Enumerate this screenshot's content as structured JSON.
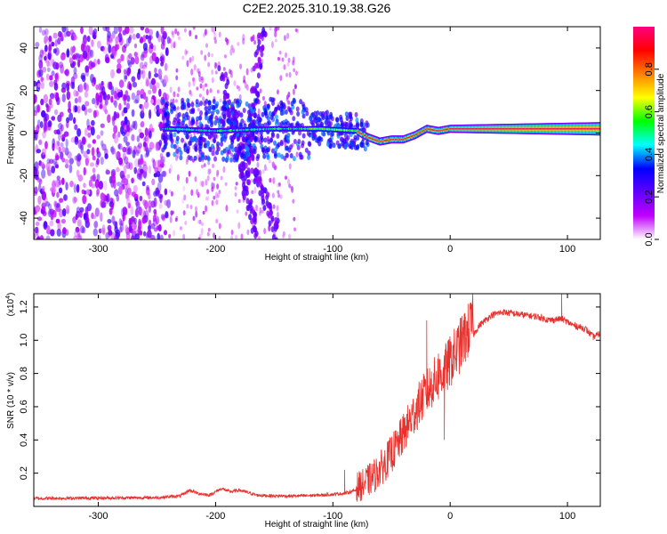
{
  "title": "C2E2.2025.310.19.38.G26",
  "chart_data": [
    {
      "type": "heatmap",
      "name": "spectrogram",
      "xlabel": "Height of straight line (km)",
      "ylabel": "Frequency (Hz)",
      "xlim": [
        -355,
        128
      ],
      "ylim": [
        -50,
        50
      ],
      "xticks": [
        -300,
        -200,
        -100,
        0,
        100
      ],
      "xtick_labels": [
        "-300",
        "-200",
        "-100",
        "0",
        "100"
      ],
      "yticks": [
        -40,
        -20,
        0,
        20,
        40
      ],
      "ytick_labels": [
        "-40",
        "-20",
        "0",
        "20",
        "40"
      ],
      "colorbar": {
        "label": "Normalized spectral amplitude",
        "range": [
          0,
          1
        ],
        "ticks": [
          0.0,
          0.2,
          0.4,
          0.6,
          0.8
        ],
        "tick_labels": [
          "0.0",
          "0.2",
          "0.4",
          "0.6",
          "0.8"
        ],
        "colormap": [
          "#ffffff",
          "#c000ff",
          "#6000ff",
          "#0000ff",
          "#00ffff",
          "#00ff00",
          "#ffff00",
          "#ff8000",
          "#ff0000",
          "#ff0080"
        ]
      },
      "features": {
        "noise_region_x": [
          -355,
          -240
        ],
        "carrier_start_x": -245,
        "carrier_track": [
          [
            -240,
            2
          ],
          [
            -200,
            1
          ],
          [
            -150,
            2
          ],
          [
            -110,
            2
          ],
          [
            -80,
            1
          ],
          [
            -70,
            -2
          ],
          [
            -60,
            -4
          ],
          [
            -50,
            -3
          ],
          [
            -40,
            -3
          ],
          [
            -30,
            -1
          ],
          [
            -20,
            2
          ],
          [
            -10,
            1
          ],
          [
            0,
            2
          ],
          [
            30,
            2
          ],
          [
            128,
            2
          ]
        ],
        "descending_streaks": [
          [
            [
              -195,
              30
            ],
            [
              -165,
              -50
            ]
          ],
          [
            [
              -185,
              10
            ],
            [
              -145,
              -50
            ]
          ]
        ],
        "ascending_streak": [
          [
            -175,
            -20
          ],
          [
            -160,
            48
          ]
        ]
      }
    },
    {
      "type": "line",
      "name": "snr",
      "xlabel": "Height of straight line (km)",
      "ylabel": "SNR (10 * v/v)",
      "y_multiplier_label": "(x10",
      "y_multiplier_exp": "4",
      "y_multiplier_close": ")",
      "xlim": [
        -355,
        128
      ],
      "ylim": [
        0,
        1.28
      ],
      "xticks": [
        -300,
        -200,
        -100,
        0,
        100
      ],
      "xtick_labels": [
        "-300",
        "-200",
        "-100",
        "0",
        "100"
      ],
      "yticks": [
        0.2,
        0.4,
        0.6,
        0.8,
        1.0,
        1.2
      ],
      "ytick_labels": [
        "0.2",
        "0.4",
        "0.6",
        "0.8",
        "1.0",
        "1.2"
      ],
      "color": "#e8302c",
      "envelope": {
        "x": [
          -355,
          -250,
          -230,
          -222,
          -215,
          -205,
          -195,
          -188,
          -180,
          -165,
          -150,
          -130,
          -110,
          -90,
          -75,
          -65,
          -55,
          -45,
          -35,
          -25,
          -15,
          -5,
          5,
          15,
          25,
          35,
          45,
          55,
          65,
          75,
          85,
          95,
          105,
          115,
          122,
          128
        ],
        "y": [
          0.03,
          0.035,
          0.045,
          0.08,
          0.06,
          0.05,
          0.09,
          0.07,
          0.08,
          0.05,
          0.045,
          0.045,
          0.05,
          0.06,
          0.09,
          0.14,
          0.22,
          0.32,
          0.45,
          0.58,
          0.68,
          0.75,
          0.86,
          0.98,
          1.09,
          1.15,
          1.17,
          1.16,
          1.15,
          1.14,
          1.12,
          1.13,
          1.09,
          1.07,
          1.02,
          1.04
        ]
      },
      "spikes": [
        [
          -20,
          1.12
        ],
        [
          -10,
          0.92
        ],
        [
          -5,
          0.4
        ],
        [
          95,
          1.28
        ],
        [
          -90,
          0.22
        ]
      ]
    }
  ]
}
